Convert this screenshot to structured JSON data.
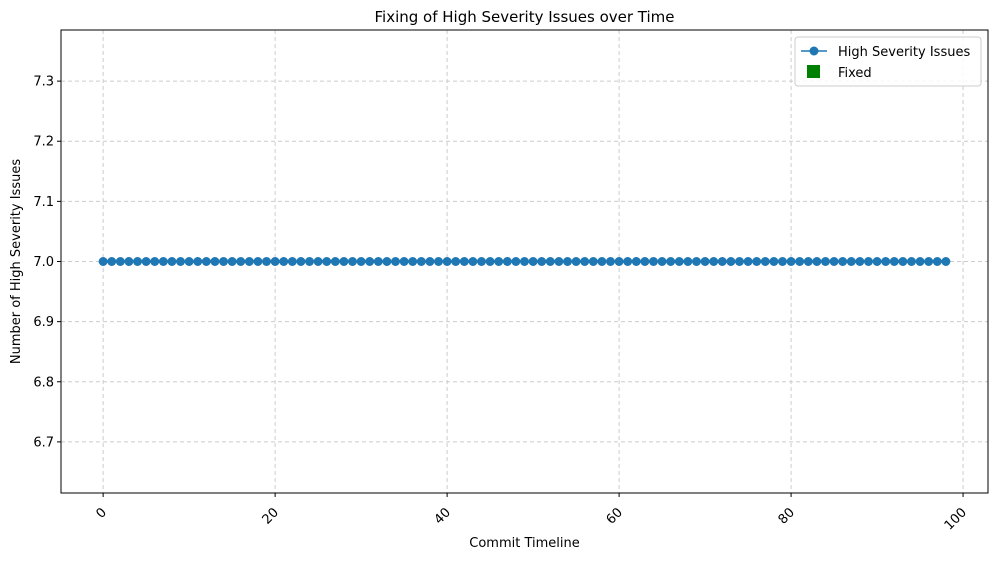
{
  "chart_data": {
    "type": "line",
    "title": "Fixing of High Severity Issues over Time",
    "xlabel": "Commit Timeline",
    "ylabel": "Number of High Severity Issues",
    "xlim": [
      -4.9,
      102.9
    ],
    "ylim": [
      6.615,
      7.385
    ],
    "xticks": [
      0,
      20,
      40,
      60,
      80,
      100
    ],
    "xtick_labels": [
      "0",
      "20",
      "40",
      "60",
      "80",
      "100"
    ],
    "xtick_rotation": 45,
    "yticks": [
      6.7,
      6.8,
      6.9,
      7.0,
      7.1,
      7.2,
      7.3
    ],
    "ytick_labels": [
      "6.7",
      "6.8",
      "6.9",
      "7.0",
      "7.1",
      "7.2",
      "7.3"
    ],
    "grid": true,
    "legend_position": "top-right",
    "series": [
      {
        "name": "High Severity Issues",
        "marker": "circle",
        "color": "#1f77b4",
        "x_start": 0,
        "x_end": 98,
        "x_step": 1,
        "y_constant": 7.0
      }
    ],
    "fixed_markers": {
      "name": "Fixed",
      "marker": "square",
      "color": "#008000",
      "points": []
    }
  }
}
